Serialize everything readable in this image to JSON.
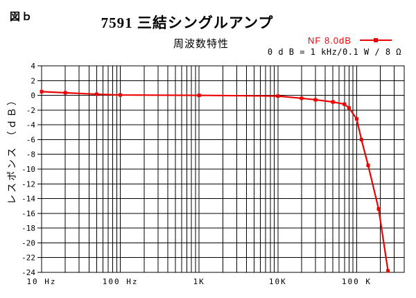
{
  "figure_label": "図ｂ",
  "title": "7591 三結シングルアンプ",
  "subtitle": "周波数特性",
  "legend": {
    "label": "NF 8.0dB",
    "color": "#ee0000",
    "marker": "square"
  },
  "reference_note": "0 d B = 1 kHz/0.1 W / 8 Ω",
  "chart_data": {
    "type": "line",
    "title": "7591 三結シングルアンプ",
    "subtitle": "周波数特性",
    "ylabel": "レスポンス （ｄＢ）",
    "xlabel": "",
    "x_scale": "log",
    "x_range": [
      10,
      400000
    ],
    "ylim": [
      -24,
      4
    ],
    "y_tick_step": 2,
    "grid": "full logarithmic grid, black 1px lines",
    "legend_position": "top-right above plot",
    "x_ticks": [
      {
        "f": 10,
        "label": "10 Hz"
      },
      {
        "f": 100,
        "label": "100 Hz"
      },
      {
        "f": 1000,
        "label": "1K"
      },
      {
        "f": 10000,
        "label": "10K"
      },
      {
        "f": 100000,
        "label": "100 K"
      }
    ],
    "series": [
      {
        "name": "NF 8.0dB",
        "color": "#ee0000",
        "marker": "square",
        "points": [
          [
            10,
            0.5
          ],
          [
            20,
            0.35
          ],
          [
            50,
            0.15
          ],
          [
            100,
            0.05
          ],
          [
            1000,
            0
          ],
          [
            10000,
            -0.1
          ],
          [
            20000,
            -0.4
          ],
          [
            30000,
            -0.6
          ],
          [
            50000,
            -0.9
          ],
          [
            70000,
            -1.2
          ],
          [
            80000,
            -1.7
          ],
          [
            100000,
            -3.2
          ],
          [
            115000,
            -6.0
          ],
          [
            140000,
            -9.5
          ],
          [
            190000,
            -15.4
          ],
          [
            250000,
            -23.8
          ]
        ]
      }
    ]
  }
}
